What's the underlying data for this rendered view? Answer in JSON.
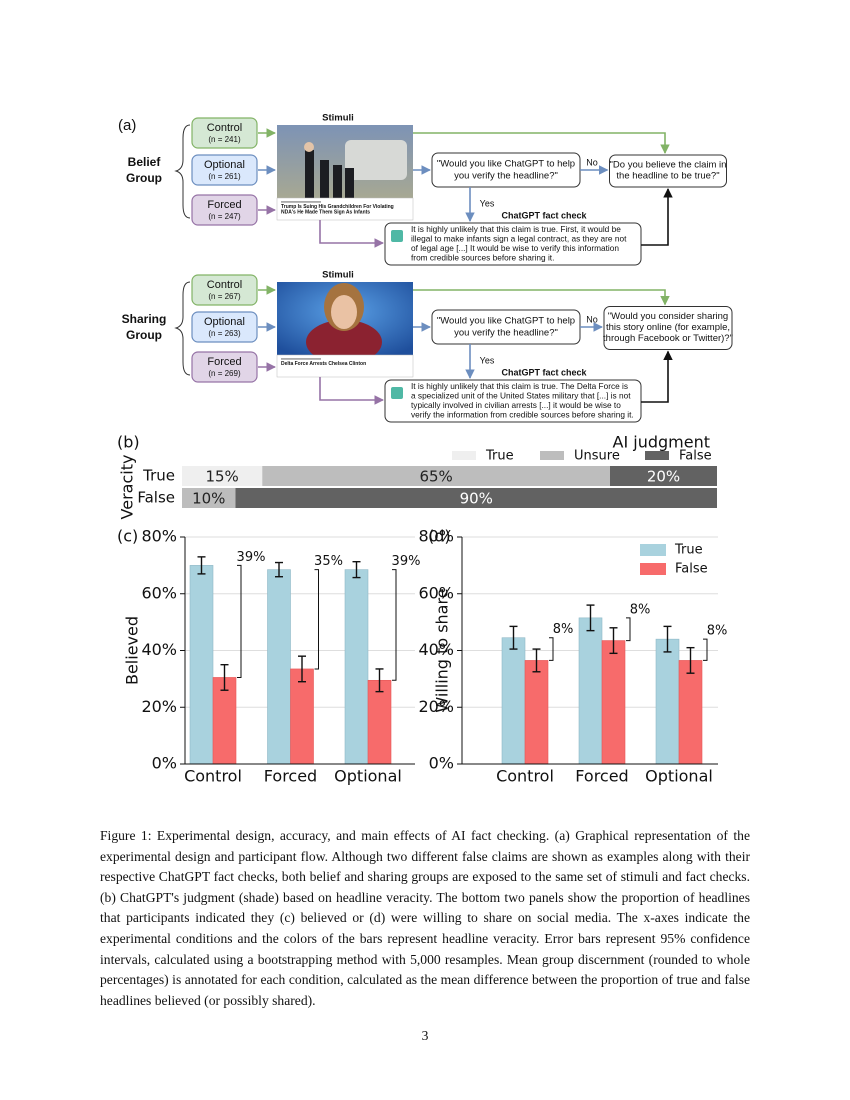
{
  "diagram": {
    "label": "(a)",
    "groups": [
      {
        "name": [
          "Belief",
          "Group"
        ],
        "stimuli": "Stimuli",
        "conditions": [
          {
            "name": "Control",
            "n": "(n = 241)"
          },
          {
            "name": "Optional",
            "n": "(n = 261)"
          },
          {
            "name": "Forced",
            "n": "(n = 247)"
          }
        ],
        "headline": [
          "Trump Is Suing His Grandchildren For Violating",
          "NDA's He Made Them Sign As Infants"
        ],
        "ask": [
          "\"Would you like ChatGPT to help",
          "you verify the headline?\""
        ],
        "no": "No",
        "yes": "Yes",
        "question": [
          "\"Do you believe the claim in",
          "the headline to be true?\""
        ],
        "fact_check_title": "ChatGPT fact check",
        "fact_check": [
          "It is highly unlikely that this claim is true. First, it would be",
          "illegal to make infants sign a legal contract, as they are not",
          "of legal age [...] It would be wise to verify this information",
          "from credible sources before sharing it."
        ]
      },
      {
        "name": [
          "Sharing",
          "Group"
        ],
        "stimuli": "Stimuli",
        "conditions": [
          {
            "name": "Control",
            "n": "(n = 267)"
          },
          {
            "name": "Optional",
            "n": "(n = 263)"
          },
          {
            "name": "Forced",
            "n": "(n = 269)"
          }
        ],
        "headline": [
          "Delta Force Arrests Chelsea Clinton"
        ],
        "ask": [
          "\"Would you like ChatGPT to help",
          "you verify the headline?\""
        ],
        "no": "No",
        "yes": "Yes",
        "question": [
          "\"Would you consider sharing",
          "this story online (for example,",
          "through Facebook or Twitter)?\""
        ],
        "fact_check_title": "ChatGPT fact check",
        "fact_check": [
          "It is highly unlikely that this claim is true. The Delta Force is",
          "a specialized unit of the United States military that [...] is not",
          "typically involved in civilian arrests [...] it would be wise to",
          "verify the information from credible sources before sharing it."
        ]
      }
    ]
  },
  "chart_data": [
    {
      "type": "stacked_barh",
      "label": "(b)",
      "ylabel": "Veracity",
      "legend_title": "AI judgment",
      "categories": [
        "True",
        "False"
      ],
      "xlim": [
        0,
        100
      ],
      "series": [
        {
          "name": "True",
          "color": "#efefef",
          "values": [
            15,
            0
          ],
          "value_labels": [
            "15%",
            null
          ]
        },
        {
          "name": "Unsure",
          "color": "#bdbdbd",
          "values": [
            65,
            10
          ],
          "value_labels": [
            "65%",
            "10%"
          ]
        },
        {
          "name": "False",
          "color": "#626262",
          "values": [
            20,
            90
          ],
          "value_labels": [
            "20%",
            "90%"
          ]
        }
      ]
    },
    {
      "type": "bar",
      "label": "(c)",
      "ylabel": "Believed",
      "categories": [
        "Control",
        "Forced",
        "Optional"
      ],
      "ylim": [
        0,
        80
      ],
      "yticks": [
        {
          "value": 0,
          "label": "0%"
        },
        {
          "value": 20,
          "label": "20%"
        },
        {
          "value": 40,
          "label": "40%"
        },
        {
          "value": 60,
          "label": "60%"
        },
        {
          "value": 80,
          "label": "80%"
        }
      ],
      "grid": true,
      "series": [
        {
          "name": "True",
          "color": "#a9d2de",
          "values": [
            70,
            68.5,
            68.5
          ],
          "errors": [
            3,
            2.5,
            2.8
          ]
        },
        {
          "name": "False",
          "color": "#f76b6b",
          "values": [
            30.5,
            33.5,
            29.5
          ],
          "errors": [
            4.5,
            4.5,
            4
          ]
        }
      ],
      "discernment": [
        39,
        35,
        39
      ],
      "discernment_labels": [
        "39%",
        "35%",
        "39%"
      ]
    },
    {
      "type": "bar",
      "label": "(d)",
      "ylabel": "Willing to share",
      "categories": [
        "Control",
        "Forced",
        "Optional"
      ],
      "ylim": [
        0,
        80
      ],
      "yticks": [
        {
          "value": 0,
          "label": "0%"
        },
        {
          "value": 20,
          "label": "20%"
        },
        {
          "value": 40,
          "label": "40%"
        },
        {
          "value": 60,
          "label": "60%"
        },
        {
          "value": 80,
          "label": "80%"
        }
      ],
      "grid": true,
      "legend": "upper right",
      "series": [
        {
          "name": "True",
          "color": "#a9d2de",
          "values": [
            44.5,
            51.5,
            44
          ],
          "errors": [
            4,
            4.5,
            4.5
          ]
        },
        {
          "name": "False",
          "color": "#f76b6b",
          "values": [
            36.5,
            43.5,
            36.5
          ],
          "errors": [
            4,
            4.5,
            4.5
          ]
        }
      ],
      "discernment": [
        8,
        8,
        8
      ],
      "discernment_labels": [
        "8%",
        "8%",
        "8%"
      ]
    }
  ],
  "caption": "Figure 1:  Experimental design, accuracy, and main effects of AI fact checking. (a) Graphical representation of the experimental design and participant flow. Although two different false claims are shown as examples along with their respective ChatGPT fact checks, both belief and sharing groups are exposed to the same set of stimuli and fact checks. (b) ChatGPT's judgment (shade) based on headline veracity. The bottom two panels show the proportion of headlines that participants indicated they (c) believed or (d) were willing to share on social media. The x-axes indicate the experimental conditions and the colors of the bars represent headline veracity. Error bars represent 95% confidence intervals, calculated using a bootstrapping method with 5,000 resamples. Mean group discernment (rounded to whole percentages) is annotated for each condition, calculated as the mean difference between the proportion of true and false headlines believed (or possibly shared).",
  "page_number": "3"
}
